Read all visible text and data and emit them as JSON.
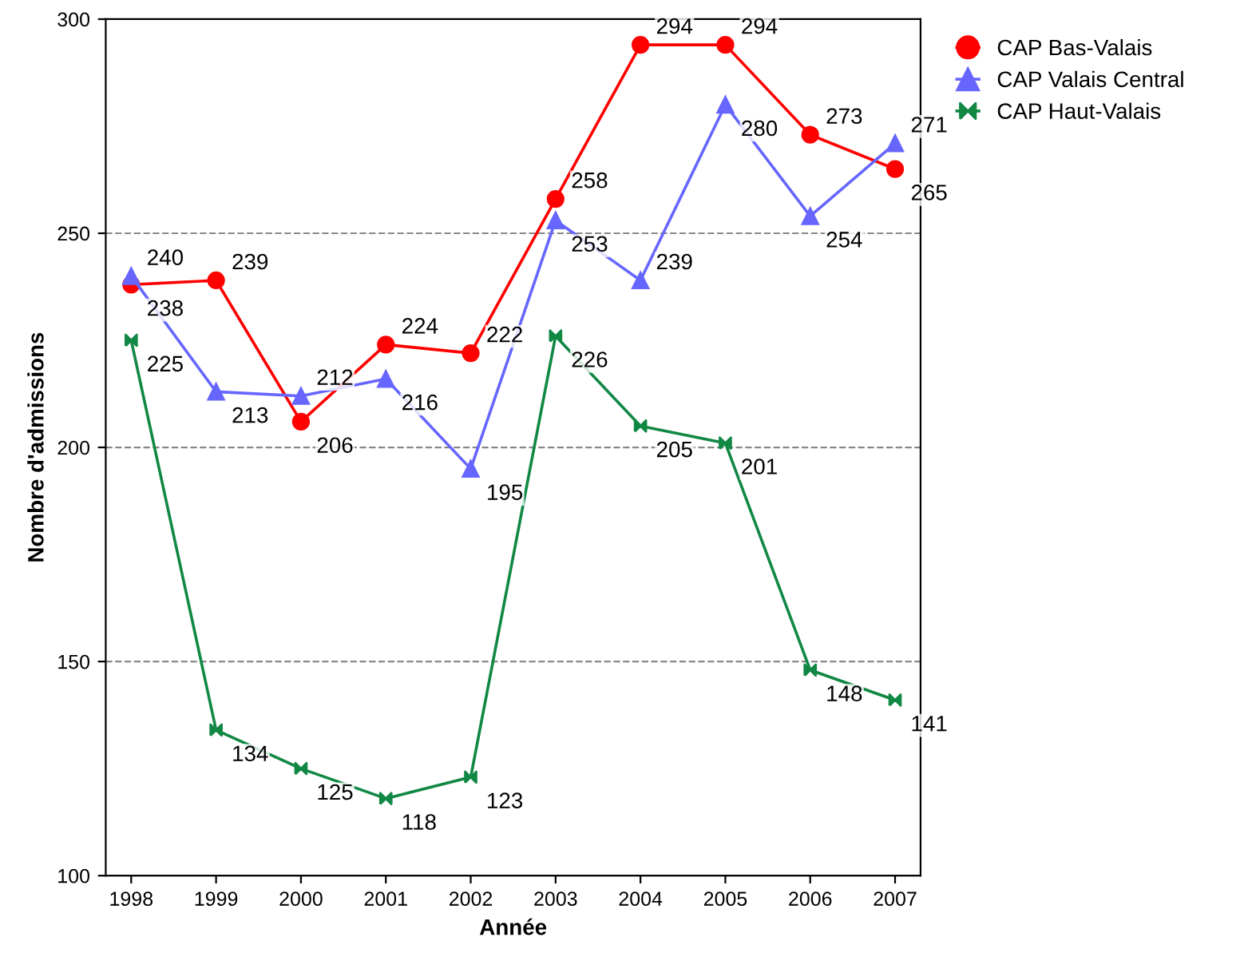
{
  "chart_data": {
    "type": "line",
    "xlabel": "Année",
    "ylabel": "Nombre d'admissions",
    "categories": [
      "1998",
      "1999",
      "2000",
      "2001",
      "2002",
      "2003",
      "2004",
      "2005",
      "2006",
      "2007"
    ],
    "series": [
      {
        "name": "CAP Bas-Valais",
        "color": "#ff0000",
        "marker": "circle",
        "values": [
          238,
          239,
          206,
          224,
          222,
          258,
          294,
          294,
          273,
          265
        ]
      },
      {
        "name": "CAP Valais Central",
        "color": "#6666ff",
        "marker": "triangle",
        "values": [
          240,
          213,
          212,
          216,
          195,
          253,
          239,
          280,
          254,
          271
        ]
      },
      {
        "name": "CAP Haut-Valais",
        "color": "#118844",
        "marker": "cross",
        "values": [
          225,
          134,
          125,
          118,
          123,
          226,
          205,
          201,
          148,
          141
        ]
      }
    ],
    "ylim": [
      100,
      300
    ],
    "yticks": [
      100,
      150,
      200,
      250,
      300
    ],
    "grid": "y",
    "legend": "top right",
    "data_labels": true,
    "line_style": "solid"
  }
}
